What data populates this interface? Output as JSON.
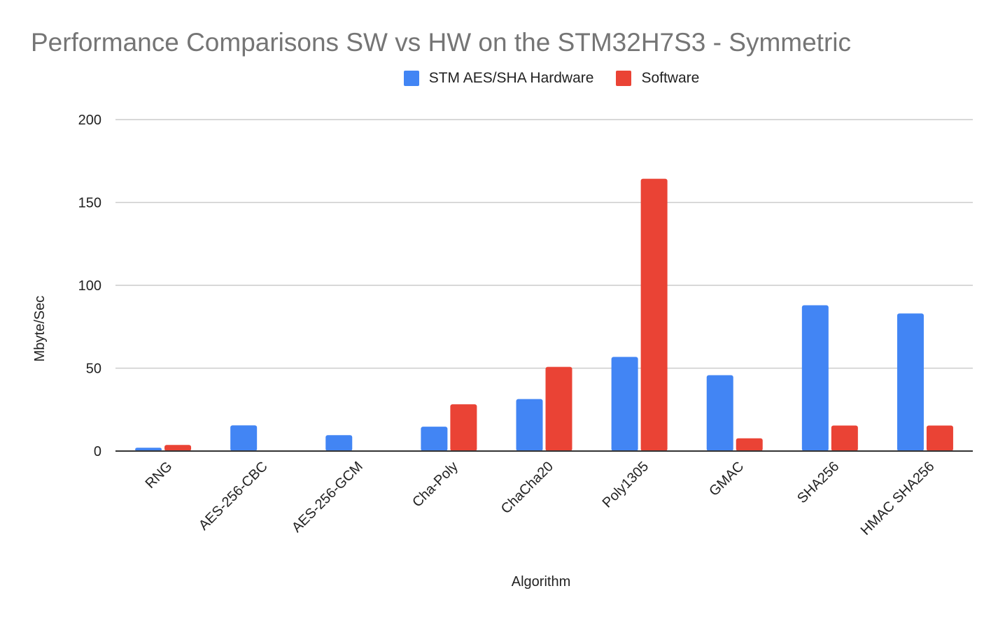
{
  "chart_data": {
    "type": "bar",
    "title": "Performance Comparisons SW vs HW on the STM32H7S3 - Symmetric",
    "xlabel": "Algorithm",
    "ylabel": "Mbyte/Sec",
    "ylim": [
      0,
      200
    ],
    "yticks": [
      0,
      50,
      100,
      150,
      200
    ],
    "grid": true,
    "legend_position": "top",
    "categories": [
      "RNG",
      "AES-256-CBC",
      "AES-256-GCM",
      "Cha-Poly",
      "ChaCha20",
      "Poly1305",
      "GMAC",
      "SHA256",
      "HMAC SHA256"
    ],
    "series": [
      {
        "name": "STM AES/SHA Hardware",
        "color": "#4285f4",
        "values": [
          2.0,
          15.5,
          9.6,
          14.7,
          31.4,
          56.8,
          45.8,
          88.0,
          83.0
        ]
      },
      {
        "name": "Software",
        "color": "#ea4335",
        "values": [
          3.7,
          0.3,
          0.3,
          28.2,
          50.8,
          164.3,
          7.7,
          15.4,
          15.4
        ]
      }
    ]
  }
}
